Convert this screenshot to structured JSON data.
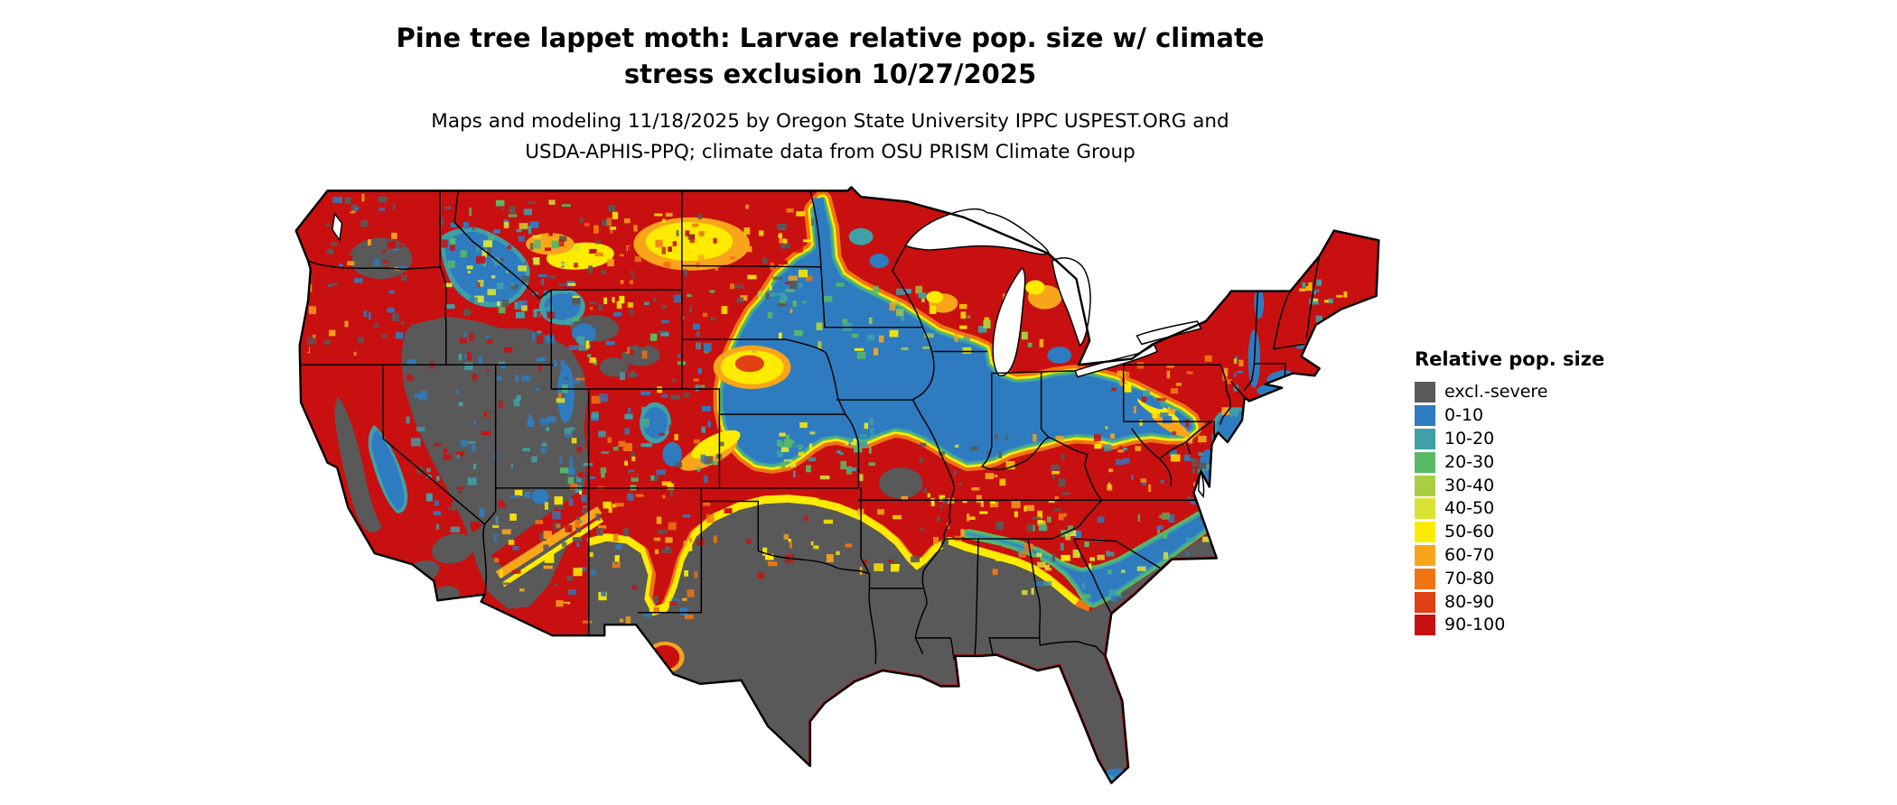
{
  "title": {
    "line1": "Pine tree lappet moth: Larvae relative pop. size w/ climate",
    "line2": "stress exclusion 10/27/2025"
  },
  "subtitle": {
    "line1": "Maps and modeling 11/18/2025 by Oregon State University IPPC USPEST.ORG and",
    "line2": "USDA-APHIS-PPQ; climate data from OSU PRISM Climate Group"
  },
  "legend": {
    "title": "Relative pop. size",
    "items": [
      {
        "label": "excl.-severe",
        "key": "excl"
      },
      {
        "label": "0-10",
        "key": "b0"
      },
      {
        "label": "10-20",
        "key": "b10"
      },
      {
        "label": "20-30",
        "key": "b20"
      },
      {
        "label": "30-40",
        "key": "b30"
      },
      {
        "label": "40-50",
        "key": "b40"
      },
      {
        "label": "50-60",
        "key": "b50"
      },
      {
        "label": "60-70",
        "key": "b60"
      },
      {
        "label": "70-80",
        "key": "b70"
      },
      {
        "label": "80-90",
        "key": "b80"
      },
      {
        "label": "90-100",
        "key": "b90"
      }
    ]
  },
  "palette": {
    "excl": "#595959",
    "b0": "#2E7CBF",
    "b10": "#3FA0A8",
    "b20": "#58B966",
    "b30": "#A9CE3F",
    "b40": "#D9E335",
    "b50": "#FFEB00",
    "b60": "#F9A51B",
    "b70": "#EF7512",
    "b80": "#DF4113",
    "b90": "#C81010"
  },
  "map": {
    "region": "Continental United States",
    "kind": "raster choropleth of relative population size with climate stress exclusion"
  }
}
